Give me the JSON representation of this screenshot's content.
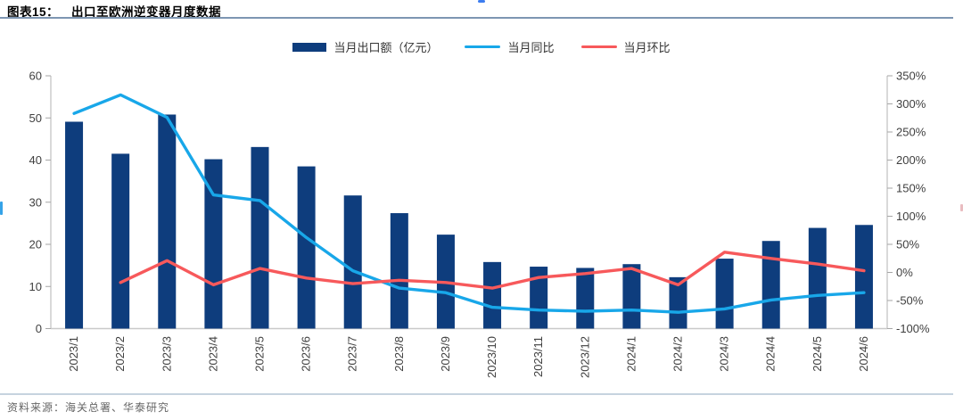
{
  "page": {
    "title_prefix": "图表15：",
    "title": "出口至欧洲逆变器月度数据",
    "source": "资料来源：海关总署、华泰研究"
  },
  "legend": {
    "bar_label": "当月出口额（亿元）",
    "yoy_label": "当月同比",
    "mom_label": "当月环比"
  },
  "colors": {
    "bar": "#0e3d7d",
    "yoy_line": "#18a7e9",
    "mom_line": "#f7595b",
    "title_rule": "#7d96b2",
    "footer_rule": "#c6d3df",
    "axis_line": "#c9c9c9",
    "tick": "#a6a6a6",
    "axis_text": "#3f3f3f"
  },
  "chart_data": {
    "type": "bar",
    "title": "出口至欧洲逆变器月度数据",
    "categories": [
      "2023/1",
      "2023/2",
      "2023/3",
      "2023/4",
      "2023/5",
      "2023/6",
      "2023/7",
      "2023/8",
      "2023/9",
      "2023/10",
      "2023/11",
      "2023/12",
      "2024/1",
      "2024/2",
      "2024/3",
      "2024/4",
      "2024/5",
      "2024/6"
    ],
    "series": [
      {
        "name": "当月出口额（亿元）",
        "type": "bar",
        "axis": "left",
        "values": [
          49.1,
          41.5,
          50.8,
          40.2,
          43.1,
          38.5,
          31.6,
          27.4,
          22.3,
          15.8,
          14.7,
          14.4,
          15.3,
          12.2,
          16.6,
          20.8,
          23.9,
          24.6
        ]
      },
      {
        "name": "当月同比",
        "type": "line",
        "axis": "right",
        "values": [
          283,
          316,
          276,
          138,
          128,
          62,
          3,
          -28,
          -36,
          -62,
          -67,
          -69,
          -67,
          -71,
          -65,
          -49,
          -41,
          -36
        ]
      },
      {
        "name": "当月环比",
        "type": "line",
        "axis": "right",
        "values": [
          null,
          -18,
          21,
          -22,
          7,
          -10,
          -20,
          -14,
          -18,
          -28,
          -9,
          -2,
          7,
          -22,
          36,
          25,
          15,
          3
        ]
      }
    ],
    "left_axis": {
      "min": 0,
      "max": 60,
      "step": 10,
      "tick_labels": [
        "0",
        "10",
        "20",
        "30",
        "40",
        "50",
        "60"
      ]
    },
    "right_axis": {
      "min": -100,
      "max": 350,
      "step": 50,
      "suffix": "%",
      "tick_labels": [
        "-100%",
        "-50%",
        "0%",
        "50%",
        "100%",
        "150%",
        "200%",
        "250%",
        "300%",
        "350%"
      ]
    },
    "legend_position": "top",
    "grid": false,
    "x_label_rotation": -90
  }
}
